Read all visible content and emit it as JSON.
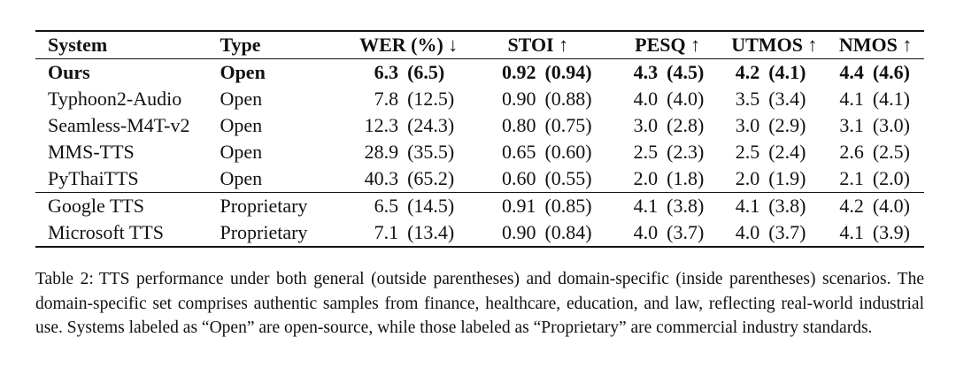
{
  "table": {
    "headers": {
      "system": "System",
      "type": "Type",
      "wer": "WER (%) ↓",
      "stoi": "STOI ↑",
      "pesq": "PESQ ↑",
      "utmos": "UTMOS ↑",
      "nmos": "NMOS ↑"
    },
    "rows": [
      {
        "system": "Ours",
        "type": "Open",
        "wer": {
          "gen": "6.3",
          "dom": "(6.5)"
        },
        "stoi": {
          "gen": "0.92",
          "dom": "(0.94)"
        },
        "pesq": {
          "gen": "4.3",
          "dom": "(4.5)"
        },
        "utmos": {
          "gen": "4.2",
          "dom": "(4.1)"
        },
        "nmos": {
          "gen": "4.4",
          "dom": "(4.6)"
        }
      },
      {
        "system": "Typhoon2-Audio",
        "type": "Open",
        "wer": {
          "gen": "7.8",
          "dom": "(12.5)"
        },
        "stoi": {
          "gen": "0.90",
          "dom": "(0.88)"
        },
        "pesq": {
          "gen": "4.0",
          "dom": "(4.0)"
        },
        "utmos": {
          "gen": "3.5",
          "dom": "(3.4)"
        },
        "nmos": {
          "gen": "4.1",
          "dom": "(4.1)"
        }
      },
      {
        "system": "Seamless-M4T-v2",
        "type": "Open",
        "wer": {
          "gen": "12.3",
          "dom": "(24.3)"
        },
        "stoi": {
          "gen": "0.80",
          "dom": "(0.75)"
        },
        "pesq": {
          "gen": "3.0",
          "dom": "(2.8)"
        },
        "utmos": {
          "gen": "3.0",
          "dom": "(2.9)"
        },
        "nmos": {
          "gen": "3.1",
          "dom": "(3.0)"
        }
      },
      {
        "system": "MMS-TTS",
        "type": "Open",
        "wer": {
          "gen": "28.9",
          "dom": "(35.5)"
        },
        "stoi": {
          "gen": "0.65",
          "dom": "(0.60)"
        },
        "pesq": {
          "gen": "2.5",
          "dom": "(2.3)"
        },
        "utmos": {
          "gen": "2.5",
          "dom": "(2.4)"
        },
        "nmos": {
          "gen": "2.6",
          "dom": "(2.5)"
        }
      },
      {
        "system": "PyThaiTTS",
        "type": "Open",
        "wer": {
          "gen": "40.3",
          "dom": "(65.2)"
        },
        "stoi": {
          "gen": "0.60",
          "dom": "(0.55)"
        },
        "pesq": {
          "gen": "2.0",
          "dom": "(1.8)"
        },
        "utmos": {
          "gen": "2.0",
          "dom": "(1.9)"
        },
        "nmos": {
          "gen": "2.1",
          "dom": "(2.0)"
        }
      },
      {
        "system": "Google TTS",
        "type": "Proprietary",
        "wer": {
          "gen": "6.5",
          "dom": "(14.5)"
        },
        "stoi": {
          "gen": "0.91",
          "dom": "(0.85)"
        },
        "pesq": {
          "gen": "4.1",
          "dom": "(3.8)"
        },
        "utmos": {
          "gen": "4.1",
          "dom": "(3.8)"
        },
        "nmos": {
          "gen": "4.2",
          "dom": "(4.0)"
        }
      },
      {
        "system": "Microsoft TTS",
        "type": "Proprietary",
        "wer": {
          "gen": "7.1",
          "dom": "(13.4)"
        },
        "stoi": {
          "gen": "0.90",
          "dom": "(0.84)"
        },
        "pesq": {
          "gen": "4.0",
          "dom": "(3.7)"
        },
        "utmos": {
          "gen": "4.0",
          "dom": "(3.7)"
        },
        "nmos": {
          "gen": "4.1",
          "dom": "(3.9)"
        }
      }
    ]
  },
  "caption": {
    "label": "Table 2:",
    "text": "TTS performance under both general (outside parentheses) and domain-specific (inside parentheses) scenarios. The domain-specific set comprises authentic samples from finance, healthcare, education, and law, reflecting real-world industrial use. Systems labeled as “Open” are open-source, while those labeled as “Proprietary” are commercial industry standards."
  }
}
